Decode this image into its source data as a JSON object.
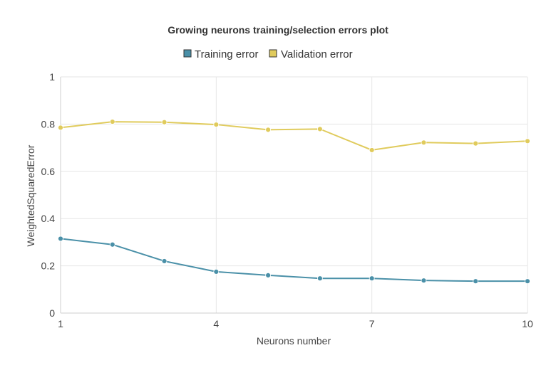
{
  "chart_data": {
    "type": "line",
    "title": "Growing neurons training/selection errors plot",
    "xlabel": "Neurons number",
    "ylabel": "WeightedSquaredError",
    "x": [
      1,
      2,
      3,
      4,
      5,
      6,
      7,
      8,
      9,
      10
    ],
    "xlim": [
      1,
      10
    ],
    "ylim": [
      0,
      1
    ],
    "x_ticks": [
      "1",
      "4",
      "7",
      "10"
    ],
    "y_ticks": [
      "0",
      "0.2",
      "0.4",
      "0.6",
      "0.8",
      "1"
    ],
    "grid": true,
    "legend_position": "top-center",
    "series": [
      {
        "name": "Training error",
        "color": "#4a90a8",
        "values": [
          0.315,
          0.29,
          0.22,
          0.175,
          0.16,
          0.147,
          0.147,
          0.138,
          0.135,
          0.135
        ]
      },
      {
        "name": "Validation error",
        "color": "#e0cb5c",
        "values": [
          0.785,
          0.81,
          0.808,
          0.798,
          0.776,
          0.779,
          0.69,
          0.722,
          0.718,
          0.728
        ]
      }
    ]
  }
}
